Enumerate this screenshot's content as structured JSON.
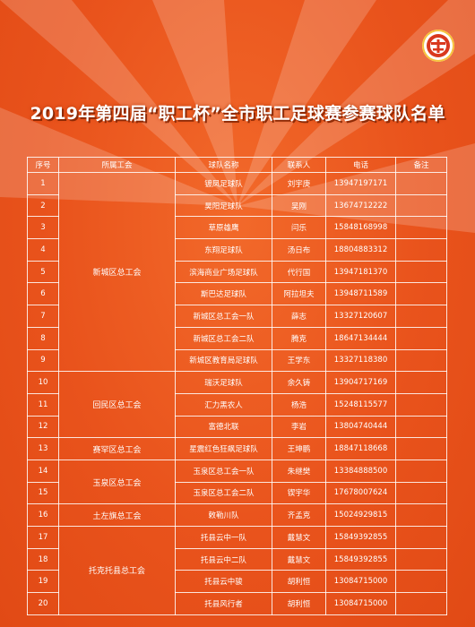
{
  "title": "2019年第四届“职工杯”全市职工足球赛参赛球队名单",
  "table": {
    "headers": [
      "序号",
      "所属工会",
      "球队名称",
      "联系人",
      "电话",
      "备注"
    ],
    "groups": [
      {
        "name": "新城区总工会",
        "rows": [
          {
            "no": "1",
            "team": "镀凤足球队",
            "contact": "刘宇庚",
            "phone": "13947197171",
            "note": ""
          },
          {
            "no": "2",
            "team": "昊阳足球队",
            "contact": "吴刚",
            "phone": "13674712222",
            "note": ""
          },
          {
            "no": "3",
            "team": "草原雄鹰",
            "contact": "闫乐",
            "phone": "15848168998",
            "note": ""
          },
          {
            "no": "4",
            "team": "东翔足球队",
            "contact": "汤日布",
            "phone": "18804883312",
            "note": ""
          },
          {
            "no": "5",
            "team": "滨海商业广场足球队",
            "contact": "代行国",
            "phone": "13947181370",
            "note": ""
          },
          {
            "no": "6",
            "team": "斯巴达足球队",
            "contact": "阿拉坦夫",
            "phone": "13948711589",
            "note": ""
          },
          {
            "no": "7",
            "team": "新城区总工会一队",
            "contact": "薛志",
            "phone": "13327120607",
            "note": ""
          },
          {
            "no": "8",
            "team": "新城区总工会二队",
            "contact": "腾克",
            "phone": "18647134444",
            "note": ""
          },
          {
            "no": "9",
            "team": "新城区教育局足球队",
            "contact": "王学东",
            "phone": "13327118380",
            "note": ""
          }
        ]
      },
      {
        "name": "回民区总工会",
        "rows": [
          {
            "no": "10",
            "team": "瑞沃足球队",
            "contact": "余久铸",
            "phone": "13904717169",
            "note": ""
          },
          {
            "no": "11",
            "team": "汇力黑农人",
            "contact": "杨浩",
            "phone": "15248115577",
            "note": ""
          },
          {
            "no": "12",
            "team": "富德北联",
            "contact": "李岩",
            "phone": "13804740444",
            "note": ""
          }
        ]
      },
      {
        "name": "赛罕区总工会",
        "rows": [
          {
            "no": "13",
            "team": "星震红色狂飙足球队",
            "contact": "王坤鹏",
            "phone": "18847118668",
            "note": ""
          }
        ]
      },
      {
        "name": "玉泉区总工会",
        "rows": [
          {
            "no": "14",
            "team": "玉泉区总工会一队",
            "contact": "朱继樊",
            "phone": "13384888500",
            "note": ""
          },
          {
            "no": "15",
            "team": "玉泉区总工会二队",
            "contact": "锲宇华",
            "phone": "17678007624",
            "note": ""
          }
        ]
      },
      {
        "name": "土左旗总工会",
        "rows": [
          {
            "no": "16",
            "team": "敕勒川队",
            "contact": "齐孟克",
            "phone": "15024929815",
            "note": ""
          }
        ]
      },
      {
        "name": "托克托县总工会",
        "rows": [
          {
            "no": "17",
            "team": "托县云中一队",
            "contact": "戴慧文",
            "phone": "15849392855",
            "note": ""
          },
          {
            "no": "18",
            "team": "托县云中二队",
            "contact": "戴慧文",
            "phone": "15849392855",
            "note": ""
          },
          {
            "no": "19",
            "team": "托县云中骏",
            "contact": "胡利恒",
            "phone": "13084715000",
            "note": ""
          },
          {
            "no": "20",
            "team": "托县风行者",
            "contact": "胡利恒",
            "phone": "13084715000",
            "note": ""
          }
        ]
      }
    ]
  }
}
